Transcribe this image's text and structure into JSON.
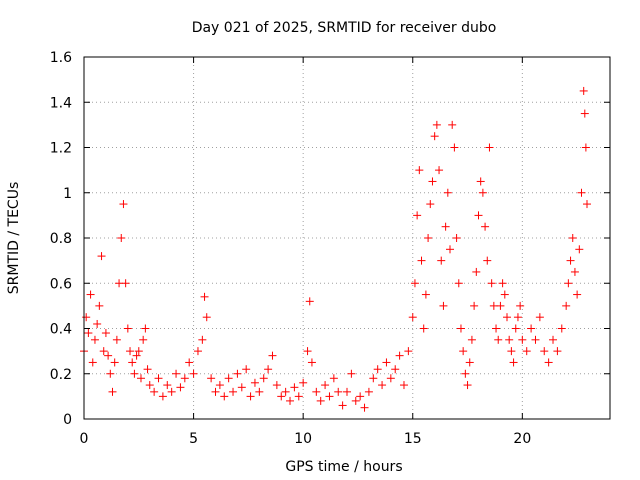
{
  "chart_data": {
    "type": "scatter",
    "title": "Day 021 of 2025, SRMTID for receiver dubo",
    "xlabel": "GPS time / hours",
    "ylabel": "SRMTID / TECUs",
    "xlim": [
      0,
      24
    ],
    "ylim": [
      0,
      1.6
    ],
    "xticks": [
      0,
      5,
      10,
      15,
      20
    ],
    "yticks": [
      0,
      0.2,
      0.4,
      0.6,
      0.8,
      1,
      1.2,
      1.4,
      1.6
    ],
    "grid": true,
    "marker": "+",
    "color": "#ff0000",
    "series": [
      {
        "name": "SRMTID",
        "points": [
          [
            0.0,
            0.3
          ],
          [
            0.1,
            0.45
          ],
          [
            0.2,
            0.38
          ],
          [
            0.3,
            0.55
          ],
          [
            0.4,
            0.25
          ],
          [
            0.5,
            0.35
          ],
          [
            0.6,
            0.42
          ],
          [
            0.7,
            0.5
          ],
          [
            0.8,
            0.72
          ],
          [
            0.9,
            0.3
          ],
          [
            1.0,
            0.38
          ],
          [
            1.1,
            0.28
          ],
          [
            1.2,
            0.2
          ],
          [
            1.3,
            0.12
          ],
          [
            1.4,
            0.25
          ],
          [
            1.5,
            0.35
          ],
          [
            1.6,
            0.6
          ],
          [
            1.7,
            0.8
          ],
          [
            1.8,
            0.95
          ],
          [
            1.9,
            0.6
          ],
          [
            2.0,
            0.4
          ],
          [
            2.1,
            0.3
          ],
          [
            2.2,
            0.25
          ],
          [
            2.3,
            0.2
          ],
          [
            2.4,
            0.28
          ],
          [
            2.5,
            0.3
          ],
          [
            2.6,
            0.18
          ],
          [
            2.7,
            0.35
          ],
          [
            2.8,
            0.4
          ],
          [
            2.9,
            0.22
          ],
          [
            3.0,
            0.15
          ],
          [
            3.2,
            0.12
          ],
          [
            3.4,
            0.18
          ],
          [
            3.6,
            0.1
          ],
          [
            3.8,
            0.15
          ],
          [
            4.0,
            0.12
          ],
          [
            4.2,
            0.2
          ],
          [
            4.4,
            0.14
          ],
          [
            4.6,
            0.18
          ],
          [
            4.8,
            0.25
          ],
          [
            5.0,
            0.2
          ],
          [
            5.2,
            0.3
          ],
          [
            5.4,
            0.35
          ],
          [
            5.5,
            0.54
          ],
          [
            5.6,
            0.45
          ],
          [
            5.8,
            0.18
          ],
          [
            6.0,
            0.12
          ],
          [
            6.2,
            0.15
          ],
          [
            6.4,
            0.1
          ],
          [
            6.6,
            0.18
          ],
          [
            6.8,
            0.12
          ],
          [
            7.0,
            0.2
          ],
          [
            7.2,
            0.14
          ],
          [
            7.4,
            0.22
          ],
          [
            7.6,
            0.1
          ],
          [
            7.8,
            0.16
          ],
          [
            8.0,
            0.12
          ],
          [
            8.2,
            0.18
          ],
          [
            8.4,
            0.22
          ],
          [
            8.6,
            0.28
          ],
          [
            8.8,
            0.15
          ],
          [
            9.0,
            0.1
          ],
          [
            9.2,
            0.12
          ],
          [
            9.4,
            0.08
          ],
          [
            9.6,
            0.14
          ],
          [
            9.8,
            0.1
          ],
          [
            10.0,
            0.16
          ],
          [
            10.2,
            0.3
          ],
          [
            10.3,
            0.52
          ],
          [
            10.4,
            0.25
          ],
          [
            10.6,
            0.12
          ],
          [
            10.8,
            0.08
          ],
          [
            11.0,
            0.15
          ],
          [
            11.2,
            0.1
          ],
          [
            11.4,
            0.18
          ],
          [
            11.6,
            0.12
          ],
          [
            11.8,
            0.06
          ],
          [
            12.0,
            0.12
          ],
          [
            12.2,
            0.2
          ],
          [
            12.4,
            0.08
          ],
          [
            12.6,
            0.1
          ],
          [
            12.8,
            0.05
          ],
          [
            13.0,
            0.12
          ],
          [
            13.2,
            0.18
          ],
          [
            13.4,
            0.22
          ],
          [
            13.6,
            0.15
          ],
          [
            13.8,
            0.25
          ],
          [
            14.0,
            0.18
          ],
          [
            14.2,
            0.22
          ],
          [
            14.4,
            0.28
          ],
          [
            14.6,
            0.15
          ],
          [
            14.8,
            0.3
          ],
          [
            15.0,
            0.45
          ],
          [
            15.1,
            0.6
          ],
          [
            15.2,
            0.9
          ],
          [
            15.3,
            1.1
          ],
          [
            15.4,
            0.7
          ],
          [
            15.5,
            0.4
          ],
          [
            15.6,
            0.55
          ],
          [
            15.7,
            0.8
          ],
          [
            15.8,
            0.95
          ],
          [
            15.9,
            1.05
          ],
          [
            16.0,
            1.25
          ],
          [
            16.1,
            1.3
          ],
          [
            16.2,
            1.1
          ],
          [
            16.3,
            0.7
          ],
          [
            16.4,
            0.5
          ],
          [
            16.5,
            0.85
          ],
          [
            16.6,
            1.0
          ],
          [
            16.7,
            0.75
          ],
          [
            16.8,
            1.3
          ],
          [
            16.9,
            1.2
          ],
          [
            17.0,
            0.8
          ],
          [
            17.1,
            0.6
          ],
          [
            17.2,
            0.4
          ],
          [
            17.3,
            0.3
          ],
          [
            17.4,
            0.2
          ],
          [
            17.5,
            0.15
          ],
          [
            17.6,
            0.25
          ],
          [
            17.7,
            0.35
          ],
          [
            17.8,
            0.5
          ],
          [
            17.9,
            0.65
          ],
          [
            18.0,
            0.9
          ],
          [
            18.1,
            1.05
          ],
          [
            18.2,
            1.0
          ],
          [
            18.3,
            0.85
          ],
          [
            18.4,
            0.7
          ],
          [
            18.5,
            1.2
          ],
          [
            18.6,
            0.6
          ],
          [
            18.7,
            0.5
          ],
          [
            18.8,
            0.4
          ],
          [
            18.9,
            0.35
          ],
          [
            19.0,
            0.5
          ],
          [
            19.1,
            0.6
          ],
          [
            19.2,
            0.55
          ],
          [
            19.3,
            0.45
          ],
          [
            19.4,
            0.35
          ],
          [
            19.5,
            0.3
          ],
          [
            19.6,
            0.25
          ],
          [
            19.7,
            0.4
          ],
          [
            19.8,
            0.45
          ],
          [
            19.9,
            0.5
          ],
          [
            20.0,
            0.35
          ],
          [
            20.2,
            0.3
          ],
          [
            20.4,
            0.4
          ],
          [
            20.6,
            0.35
          ],
          [
            20.8,
            0.45
          ],
          [
            21.0,
            0.3
          ],
          [
            21.2,
            0.25
          ],
          [
            21.4,
            0.35
          ],
          [
            21.6,
            0.3
          ],
          [
            21.8,
            0.4
          ],
          [
            22.0,
            0.5
          ],
          [
            22.1,
            0.6
          ],
          [
            22.2,
            0.7
          ],
          [
            22.3,
            0.8
          ],
          [
            22.4,
            0.65
          ],
          [
            22.5,
            0.55
          ],
          [
            22.6,
            0.75
          ],
          [
            22.7,
            1.0
          ],
          [
            22.8,
            1.45
          ],
          [
            22.85,
            1.35
          ],
          [
            22.9,
            1.2
          ],
          [
            22.95,
            0.95
          ]
        ]
      }
    ]
  }
}
